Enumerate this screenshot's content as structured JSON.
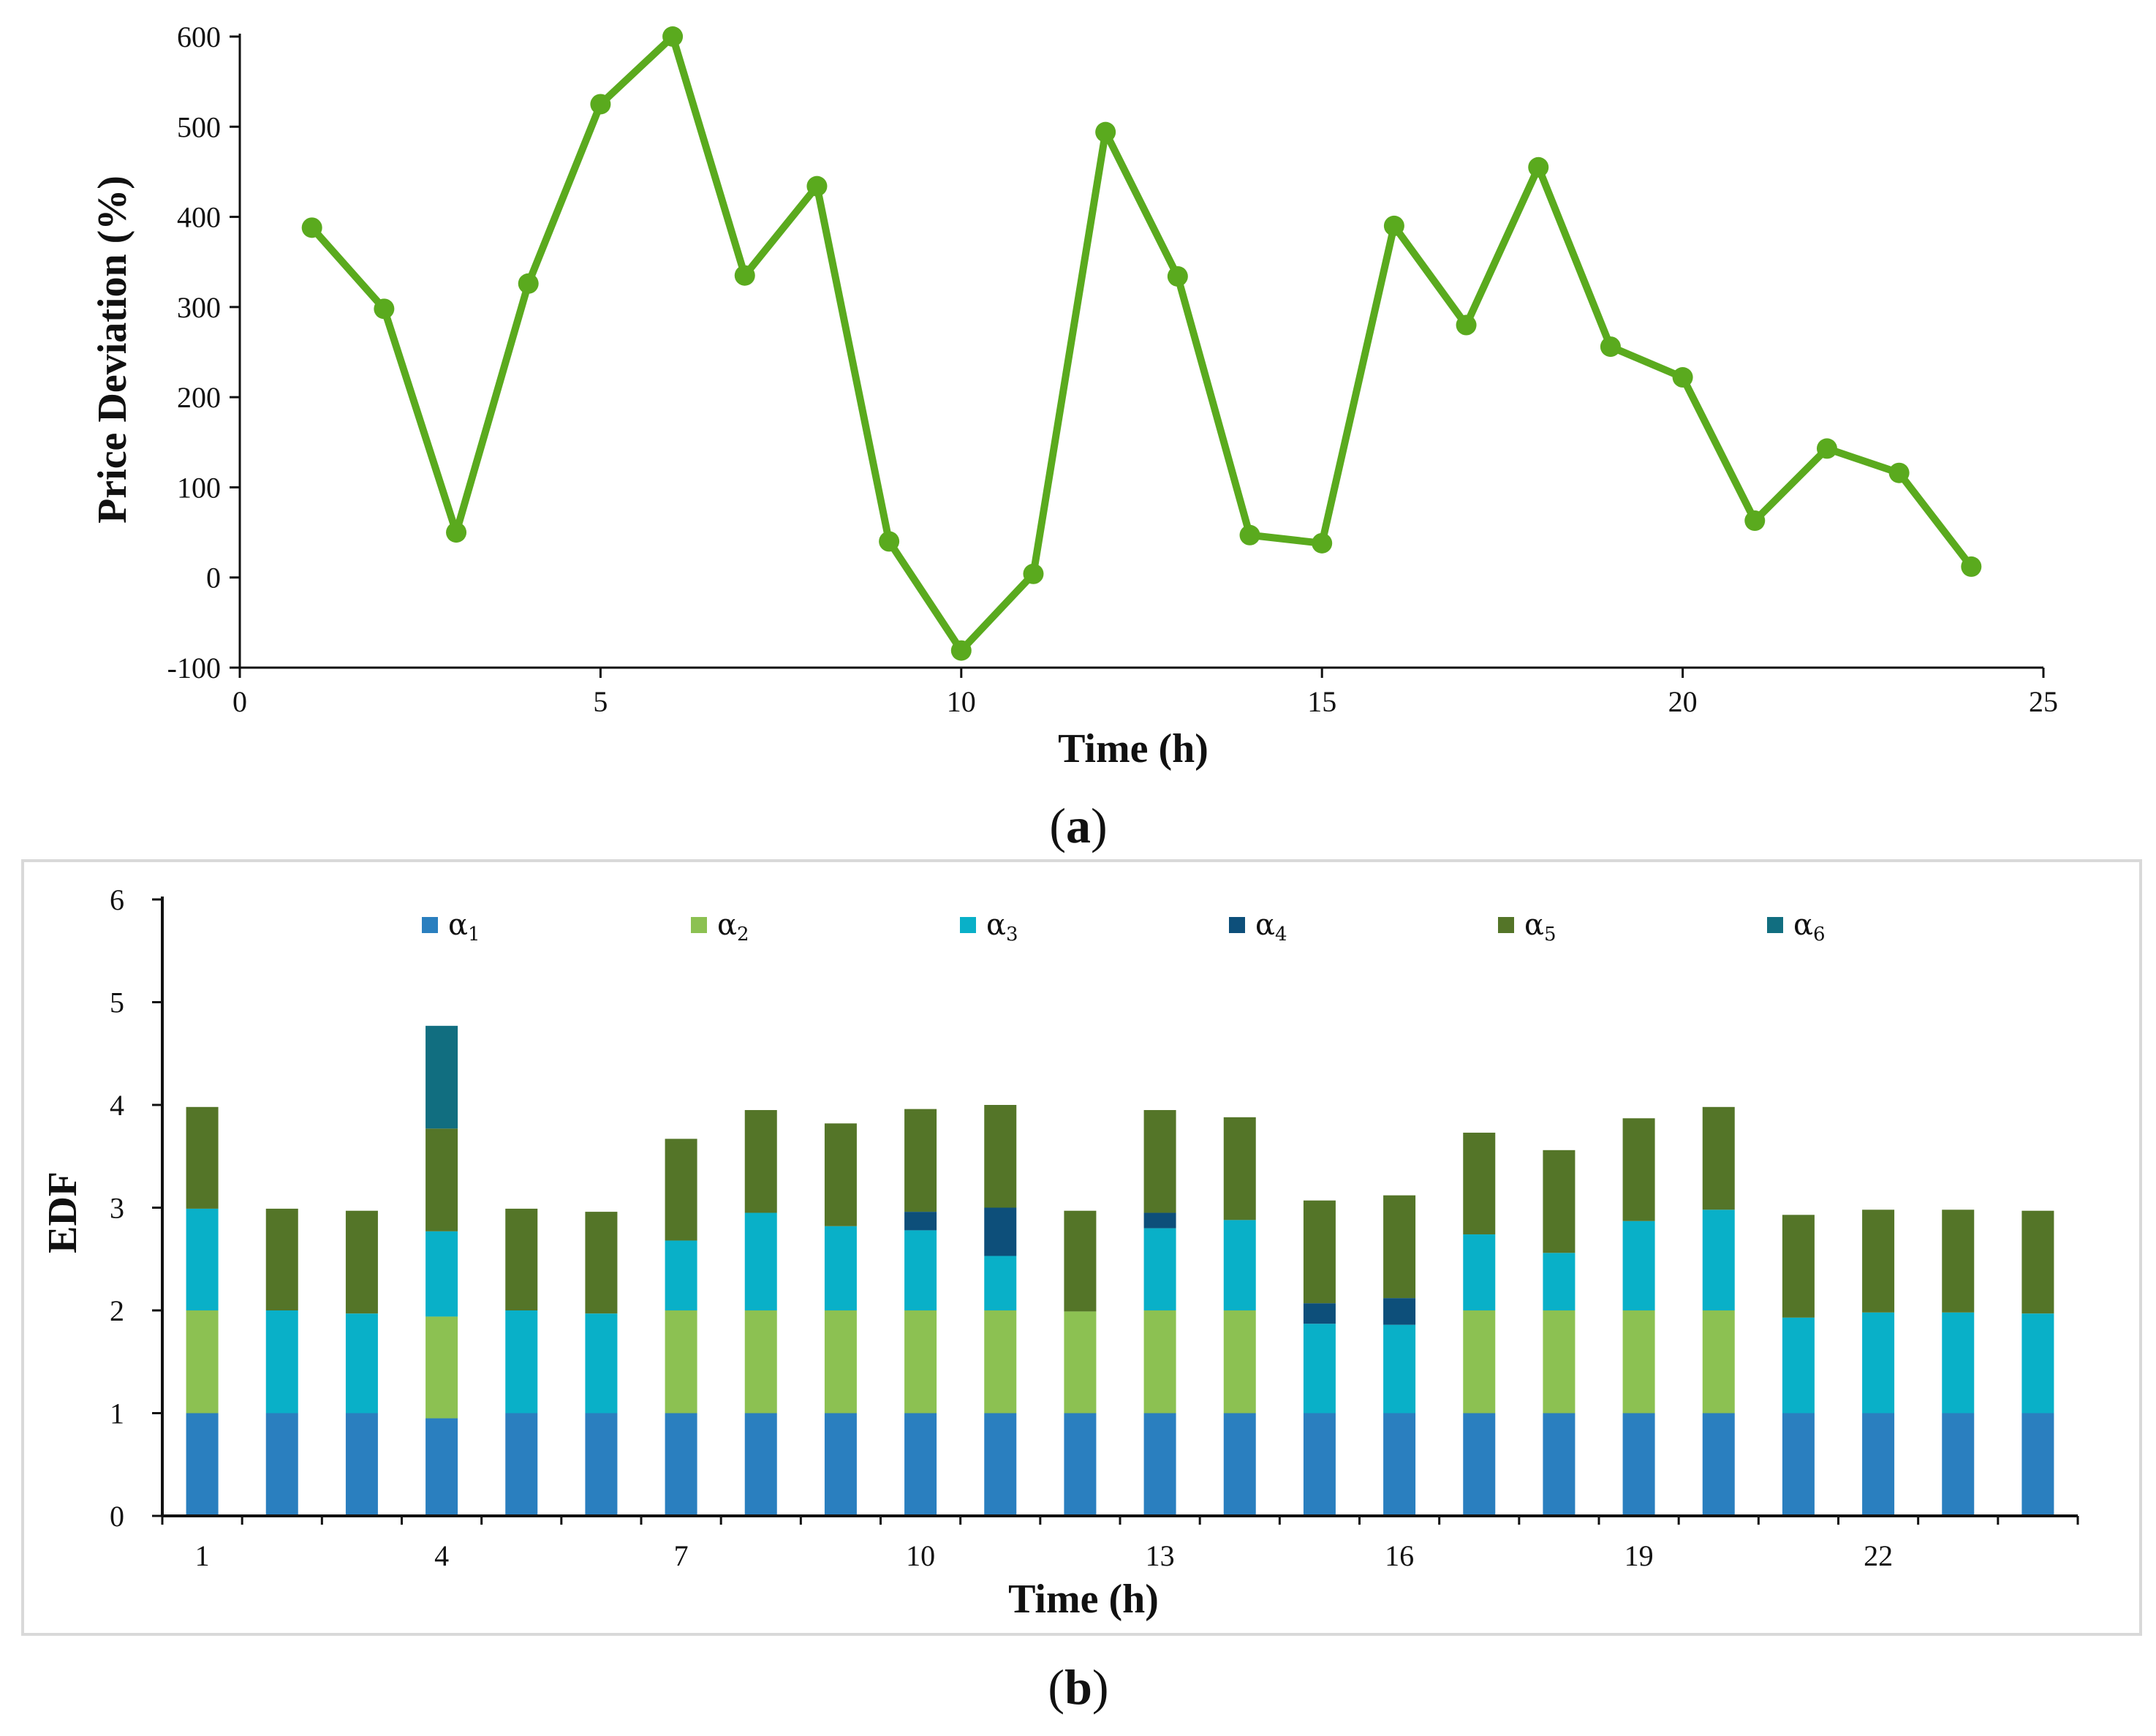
{
  "panel_a": {
    "caption_letter": "a",
    "chart_data": {
      "type": "line",
      "title": "",
      "xlabel": "Time (h)",
      "ylabel": "Price Deviation (%)",
      "xlim": [
        0,
        25
      ],
      "ylim": [
        -100,
        600
      ],
      "xticks": [
        "0",
        "5",
        "10",
        "15",
        "20",
        "25"
      ],
      "yticks": [
        "-100",
        "0",
        "100",
        "200",
        "300",
        "400",
        "500",
        "600"
      ],
      "color": "#5aaa1e",
      "x": [
        1,
        2,
        3,
        4,
        5,
        6,
        7,
        8,
        9,
        10,
        11,
        12,
        13,
        14,
        15,
        16,
        17,
        18,
        19,
        20,
        21,
        22,
        23,
        24
      ],
      "y": [
        388,
        298,
        50,
        326,
        525,
        600,
        335,
        434,
        40,
        -81,
        4,
        494,
        334,
        47,
        38,
        390,
        280,
        455,
        256,
        222,
        63,
        143,
        116,
        12
      ]
    }
  },
  "panel_b": {
    "caption_letter": "b",
    "chart_data": {
      "type": "bar",
      "stacked": true,
      "title": "",
      "xlabel": "Time (h)",
      "ylabel": "EDF",
      "ylim": [
        0,
        6
      ],
      "yticks": [
        "0",
        "1",
        "2",
        "3",
        "4",
        "5",
        "6"
      ],
      "categories": [
        "1",
        "2",
        "3",
        "4",
        "5",
        "6",
        "7",
        "8",
        "9",
        "10",
        "11",
        "12",
        "13",
        "14",
        "15",
        "16",
        "17",
        "18",
        "19",
        "20",
        "21",
        "22",
        "23",
        "24"
      ],
      "xtick_labels": [
        "1",
        "4",
        "7",
        "10",
        "13",
        "16",
        "19",
        "22"
      ],
      "legend_position": "top",
      "series": [
        {
          "name": "α",
          "sub": "1",
          "color": "#2a7fbf",
          "values": [
            1,
            1,
            1,
            0.95,
            1,
            1,
            1,
            1,
            1,
            1,
            1,
            1,
            1,
            1,
            1,
            1,
            1,
            1,
            1,
            1,
            1,
            1,
            1,
            1
          ]
        },
        {
          "name": "α",
          "sub": "2",
          "color": "#8cc152",
          "values": [
            1,
            0,
            0,
            0.99,
            0,
            0,
            1,
            1,
            1,
            1,
            1,
            0.99,
            1,
            1,
            0,
            0,
            1,
            1,
            1,
            1,
            0,
            0,
            0,
            0
          ]
        },
        {
          "name": "α",
          "sub": "3",
          "color": "#09b0c8",
          "values": [
            0.99,
            1,
            0.97,
            0.83,
            1,
            0.97,
            0.68,
            0.95,
            0.82,
            0.78,
            0.53,
            0,
            0.8,
            0.88,
            0.87,
            0.86,
            0.74,
            0.56,
            0.87,
            0.98,
            0.93,
            0.98,
            0.98,
            0.97
          ]
        },
        {
          "name": "α",
          "sub": "4",
          "color": "#0d4f7a",
          "values": [
            0,
            0,
            0,
            0,
            0,
            0,
            0,
            0,
            0,
            0.18,
            0.47,
            0,
            0.15,
            0,
            0.2,
            0.26,
            0,
            0,
            0,
            0,
            0,
            0,
            0,
            0
          ]
        },
        {
          "name": "α",
          "sub": "5",
          "color": "#547528",
          "values": [
            0.99,
            0.99,
            1,
            1,
            0.99,
            0.99,
            0.99,
            1,
            1,
            1,
            1,
            0.98,
            1,
            1,
            1,
            1,
            0.99,
            1,
            1,
            1,
            1,
            1,
            1,
            1
          ]
        },
        {
          "name": "α",
          "sub": "6",
          "color": "#116e80",
          "values": [
            0,
            0,
            0,
            1,
            0,
            0,
            0,
            0,
            0,
            0,
            0,
            0,
            0,
            0,
            0,
            0,
            0,
            0,
            0,
            0,
            0,
            0,
            0,
            0
          ]
        }
      ]
    }
  }
}
